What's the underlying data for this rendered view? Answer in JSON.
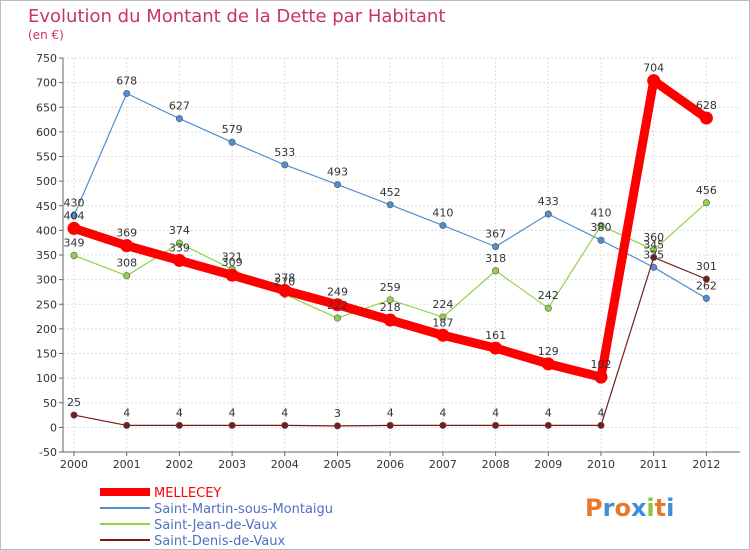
{
  "chart_data": {
    "type": "line",
    "title": "Evolution du Montant de la Dette par Habitant",
    "subtitle": "(en €)",
    "xlabel": "",
    "ylabel": "",
    "categories": [
      "2000",
      "2001",
      "2002",
      "2003",
      "2004",
      "2005",
      "2006",
      "2007",
      "2008",
      "2009",
      "2010",
      "2011",
      "2012"
    ],
    "ylim": [
      -50,
      750
    ],
    "yticks": [
      -50,
      0,
      50,
      100,
      150,
      200,
      250,
      300,
      350,
      400,
      450,
      500,
      550,
      600,
      650,
      700,
      750
    ],
    "grid": true,
    "legend_position": "bottom-left",
    "series": [
      {
        "name": "MELLECEY",
        "color": "#ff0000",
        "values": [
          404,
          369,
          339,
          309,
          278,
          249,
          218,
          187,
          161,
          129,
          102,
          704,
          628
        ]
      },
      {
        "name": "Saint-Martin-sous-Montaigu",
        "color": "#4f8fd0",
        "values": [
          430,
          678,
          627,
          579,
          533,
          493,
          452,
          410,
          367,
          433,
          380,
          325,
          262
        ]
      },
      {
        "name": "Saint-Jean-de-Vaux",
        "color": "#8fd34a",
        "values": [
          349,
          308,
          374,
          321,
          270,
          222,
          259,
          224,
          318,
          242,
          410,
          360,
          456
        ]
      },
      {
        "name": "Saint-Denis-de-Vaux",
        "color": "#7a1a1a",
        "values": [
          25,
          4,
          4,
          4,
          4,
          3,
          4,
          4,
          4,
          4,
          4,
          345,
          301
        ]
      }
    ]
  },
  "watermark": "Proxiti"
}
